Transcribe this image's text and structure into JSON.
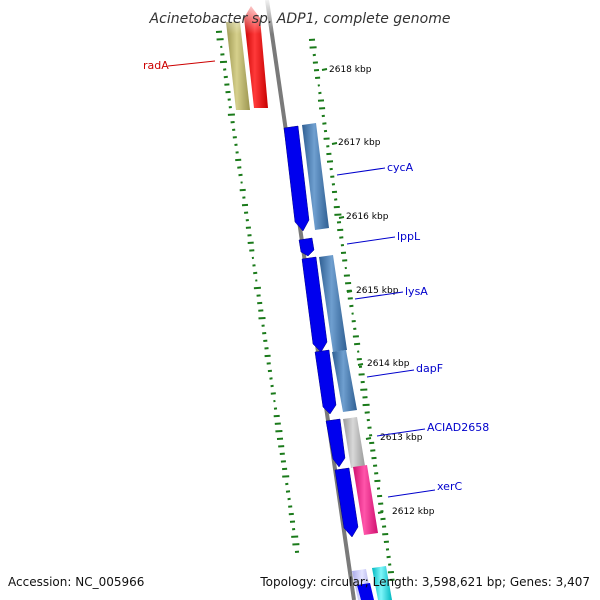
{
  "title": "Acinetobacter sp. ADP1, complete genome",
  "accession": "Accession: NC_005966",
  "summary": "Topology: circular; Length: 3,598,621 bp; Genes: 3,407",
  "ticks": [
    "2618 kbp",
    "2617 kbp",
    "2616 kbp",
    "2615 kbp",
    "2614 kbp",
    "2613 kbp",
    "2612 kbp"
  ],
  "genes": [
    {
      "name": "radA",
      "color": "#cc0000"
    },
    {
      "name": "cycA",
      "color": "#0000cc"
    },
    {
      "name": "lppL",
      "color": "#0000cc"
    },
    {
      "name": "lysA",
      "color": "#0000cc"
    },
    {
      "name": "dapF",
      "color": "#0000cc"
    },
    {
      "name": "ACIAD2658",
      "color": "#0000cc"
    },
    {
      "name": "xerC",
      "color": "#0000cc"
    }
  ],
  "colors": {
    "cds_forward": "#0000ee",
    "cog_blue": "#4d7fb3",
    "cog_khaki": "#bdb76b",
    "cog_red": "#ff0000",
    "cog_grey": "#b0b0b0",
    "cog_pink": "#ff1493",
    "cog_cyan": "#00e5ee",
    "backbone": "#808080",
    "gc_skew": "#1a7a1a"
  }
}
